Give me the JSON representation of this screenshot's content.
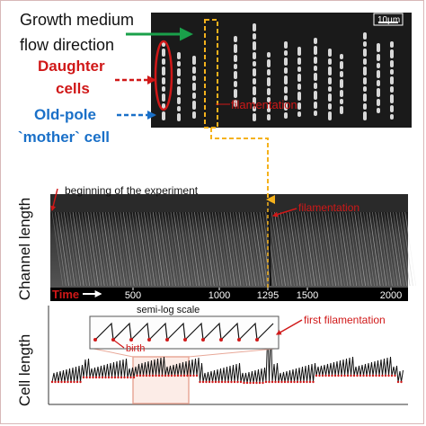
{
  "labels": {
    "growth_medium_line1": "Growth medium",
    "growth_medium_line2": "flow direction",
    "daughter_line1": "Daughter",
    "daughter_line2": "cells",
    "mother_line1": "Old-pole",
    "mother_line2": "`mother` cell",
    "scale_bar": "10µm",
    "filamentation_top": "filamentation",
    "beginning": "beginning of the experiment",
    "filamentation_kymo": "filamentation",
    "channel_length": "Channel length",
    "time": "Time",
    "cell_length": "Cell length",
    "semi_log": "semi-log scale",
    "birth": "birth",
    "first_filamentation": "first filamentation"
  },
  "time_ticks": [
    "500",
    "1000",
    "1295",
    "1500",
    "2000"
  ],
  "colors": {
    "red": "#d01818",
    "blue": "#1a70c8",
    "green": "#1aa04a",
    "orange": "#f5b21c",
    "black": "#111111",
    "zoom_box": "#e8a898"
  }
}
